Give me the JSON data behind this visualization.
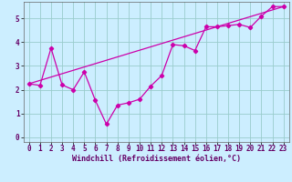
{
  "xlabel": "Windchill (Refroidissement éolien,°C)",
  "background_color": "#cceeff",
  "line_color": "#cc00aa",
  "grid_color": "#99cccc",
  "axis_color": "#666666",
  "xlim": [
    -0.5,
    23.5
  ],
  "ylim": [
    -0.2,
    5.7
  ],
  "yticks": [
    0,
    1,
    2,
    3,
    4,
    5
  ],
  "xticks": [
    0,
    1,
    2,
    3,
    4,
    5,
    6,
    7,
    8,
    9,
    10,
    11,
    12,
    13,
    14,
    15,
    16,
    17,
    18,
    19,
    20,
    21,
    22,
    23
  ],
  "line1_x": [
    0,
    1,
    2,
    3,
    4,
    5,
    6,
    7,
    8,
    9,
    10,
    11,
    12,
    13,
    14,
    15,
    16,
    17,
    18,
    19,
    20,
    21,
    22,
    23
  ],
  "line1_y": [
    2.25,
    2.18,
    3.75,
    2.2,
    2.0,
    2.75,
    1.55,
    0.55,
    1.35,
    1.45,
    1.6,
    2.15,
    2.6,
    3.9,
    3.85,
    3.65,
    4.65,
    4.65,
    4.7,
    4.75,
    4.62,
    5.1,
    5.5,
    5.5
  ],
  "line2_x": [
    0,
    23
  ],
  "line2_y": [
    2.25,
    5.5
  ],
  "xlabel_color": "#660066",
  "xlabel_fontsize": 6,
  "tick_fontsize": 5.5
}
